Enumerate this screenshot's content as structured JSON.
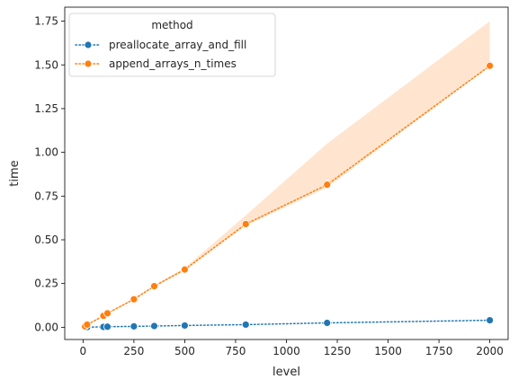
{
  "chart_data": {
    "type": "line",
    "xlabel": "level",
    "ylabel": "time",
    "xlim": [
      -90,
      2090
    ],
    "ylim": [
      -0.07,
      1.83
    ],
    "x_ticks": [
      0,
      250,
      500,
      750,
      1000,
      1250,
      1500,
      1750,
      2000
    ],
    "y_ticks": [
      0.0,
      0.25,
      0.5,
      0.75,
      1.0,
      1.25,
      1.5,
      1.75
    ],
    "grid": false,
    "legend": {
      "title": "method",
      "placement": "upper-left"
    },
    "series": [
      {
        "name": "preallocate_array_and_fill",
        "color": "#1f77b4",
        "line_style": "dotted",
        "marker": "circle",
        "x": [
          10,
          20,
          100,
          120,
          250,
          350,
          500,
          800,
          1200,
          2000
        ],
        "y": [
          0.0,
          0.001,
          0.002,
          0.003,
          0.005,
          0.007,
          0.01,
          0.015,
          0.025,
          0.04
        ]
      },
      {
        "name": "append_arrays_n_times",
        "color": "#ff7f0e",
        "line_style": "dotted",
        "marker": "circle",
        "x": [
          10,
          20,
          100,
          120,
          250,
          350,
          500,
          800,
          1200,
          2000
        ],
        "y": [
          0.005,
          0.015,
          0.065,
          0.08,
          0.16,
          0.235,
          0.33,
          0.59,
          0.815,
          1.495
        ],
        "ci_lower": [
          0.005,
          0.014,
          0.062,
          0.077,
          0.155,
          0.23,
          0.325,
          0.58,
          0.8,
          1.49
        ],
        "ci_upper": [
          0.006,
          0.017,
          0.068,
          0.083,
          0.167,
          0.24,
          0.34,
          0.64,
          1.05,
          1.75
        ]
      }
    ]
  }
}
